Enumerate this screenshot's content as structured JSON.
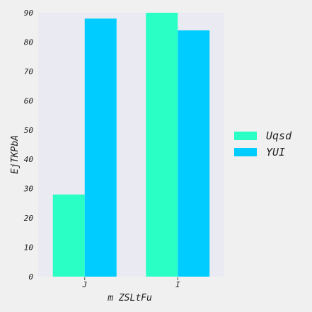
{
  "chart_data": {
    "type": "bar",
    "categories": [
      "J",
      "I"
    ],
    "series": [
      {
        "name": "Uqsd",
        "values": [
          28,
          90
        ],
        "color": "#2affc6"
      },
      {
        "name": "YUI",
        "values": [
          88,
          84
        ],
        "color": "#00ccff"
      }
    ],
    "title": "",
    "xlabel": "m ZSLtFu",
    "ylabel": "EjTKPbA",
    "ylim": [
      0,
      90
    ],
    "yticks": [
      0,
      10,
      20,
      30,
      40,
      50,
      60,
      70,
      80,
      90
    ],
    "grid": false,
    "legend_position": "right",
    "plot_background": "#eaeaf2",
    "page_background": "#f0f0f0"
  }
}
